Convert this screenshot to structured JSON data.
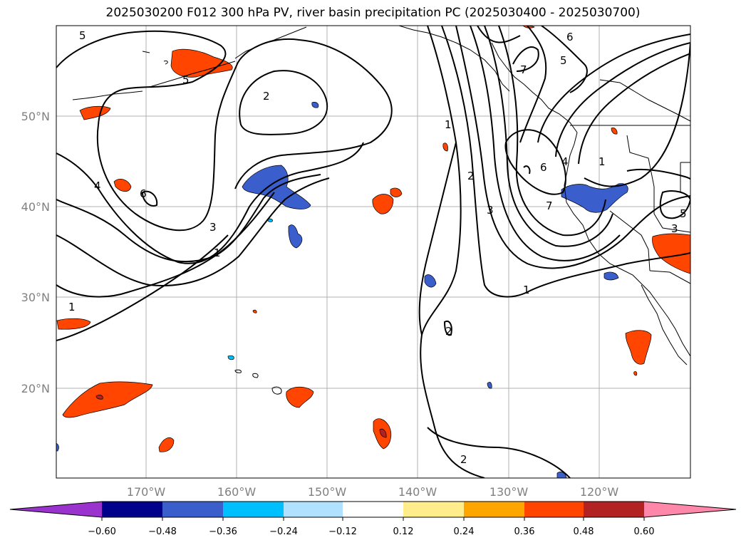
{
  "title": "2025030200 F012 300 hPa PV, river basin precipitation PC (2025030400 - 2025030700)",
  "lat_labels": [
    "50°N",
    "40°N",
    "30°N",
    "20°N"
  ],
  "lon_labels": [
    "170°W",
    "160°W",
    "150°W",
    "140°W",
    "130°W",
    "120°W"
  ],
  "contour_labels": [
    "5",
    "5",
    "6",
    "4",
    "2",
    "3",
    "1",
    "1",
    "1",
    "2",
    "3",
    "7",
    "6",
    "5",
    "6",
    "4",
    "7",
    "1",
    "1",
    "2",
    "2",
    "3",
    "5"
  ],
  "colorbar": {
    "ticks": [
      "−0.60",
      "−0.48",
      "−0.36",
      "−0.24",
      "−0.12",
      "0.12",
      "0.24",
      "0.36",
      "0.48",
      "0.60"
    ],
    "colors": [
      "#9a32cd",
      "#00008b",
      "#3a5fcd",
      "#00bfff",
      "#b0e2ff",
      "#ffffff",
      "#ffec8b",
      "#ffa500",
      "#ff4500",
      "#b22222",
      "#ff88aa"
    ]
  },
  "colors": {
    "negative": "#3a5fcd",
    "negative_light": "#00bfff",
    "positive": "#ff4500",
    "positive_light": "#ffec8b",
    "positive_dark": "#b22222"
  }
}
